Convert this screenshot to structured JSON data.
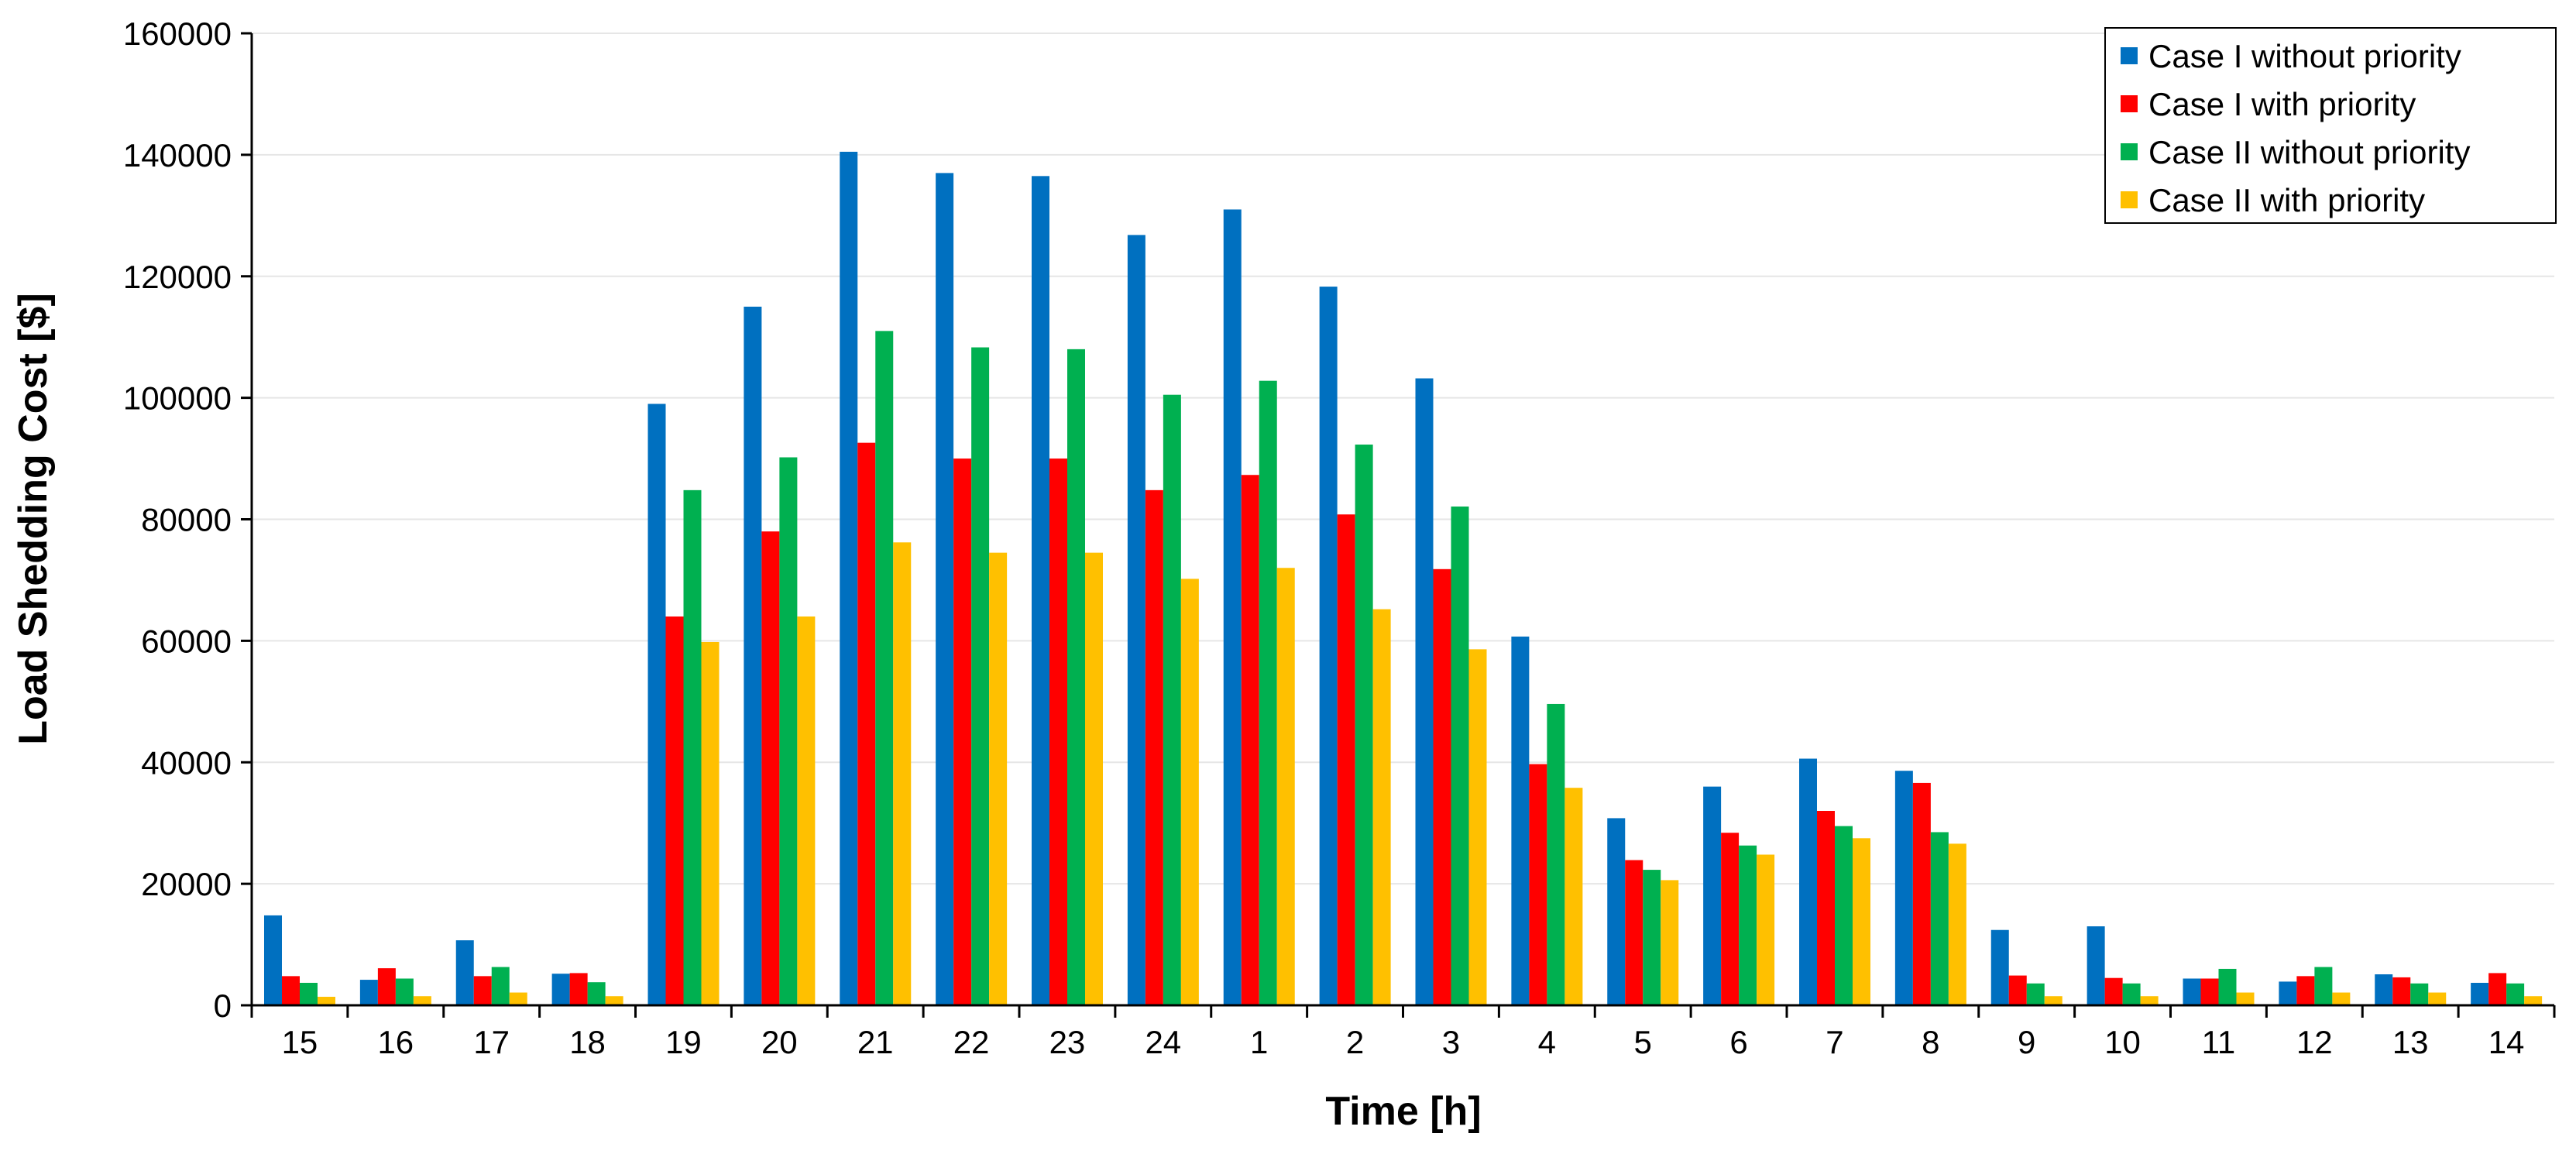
{
  "chart_data": {
    "type": "bar",
    "title": "",
    "xlabel": "Time [h]",
    "ylabel": "Load Shedding Cost [$]",
    "ylim": [
      0,
      160000
    ],
    "yticks": [
      0,
      20000,
      40000,
      60000,
      80000,
      100000,
      120000,
      140000,
      160000
    ],
    "ytick_labels": [
      "0",
      "20000",
      "40000",
      "60000",
      "80000",
      "100000",
      "120000",
      "140000",
      "160000"
    ],
    "grid": true,
    "legend_position": "top-right",
    "categories": [
      "15",
      "16",
      "17",
      "18",
      "19",
      "20",
      "21",
      "22",
      "23",
      "24",
      "1",
      "2",
      "3",
      "4",
      "5",
      "6",
      "7",
      "8",
      "9",
      "10",
      "11",
      "12",
      "13",
      "14"
    ],
    "series": [
      {
        "name": "Case I without priority",
        "color": "#0070C0",
        "values": [
          14800,
          4200,
          10700,
          5200,
          99000,
          115000,
          140500,
          137000,
          136500,
          126800,
          131000,
          118300,
          103200,
          60700,
          30800,
          36000,
          40600,
          38600,
          12400,
          13000,
          4400,
          3900,
          5100,
          3700
        ]
      },
      {
        "name": "Case I with priority",
        "color": "#FF0000",
        "values": [
          4800,
          6100,
          4800,
          5300,
          64000,
          78000,
          92600,
          90000,
          90000,
          84800,
          87300,
          80800,
          71800,
          39700,
          23900,
          28400,
          32000,
          36600,
          4900,
          4500,
          4400,
          4800,
          4600,
          5300
        ]
      },
      {
        "name": "Case II without priority",
        "color": "#00B050",
        "values": [
          3700,
          4400,
          6300,
          3800,
          84800,
          90200,
          111000,
          108300,
          108000,
          100500,
          102800,
          92300,
          82100,
          49600,
          22300,
          26300,
          29500,
          28500,
          3600,
          3600,
          6000,
          6300,
          3600,
          3600
        ]
      },
      {
        "name": "Case II with priority",
        "color": "#FFC000",
        "values": [
          1400,
          1500,
          2100,
          1500,
          59800,
          64000,
          76200,
          74500,
          74500,
          70200,
          72000,
          65200,
          58600,
          35800,
          20600,
          24800,
          27500,
          26600,
          1500,
          1500,
          2100,
          2100,
          2100,
          1500
        ]
      }
    ]
  }
}
